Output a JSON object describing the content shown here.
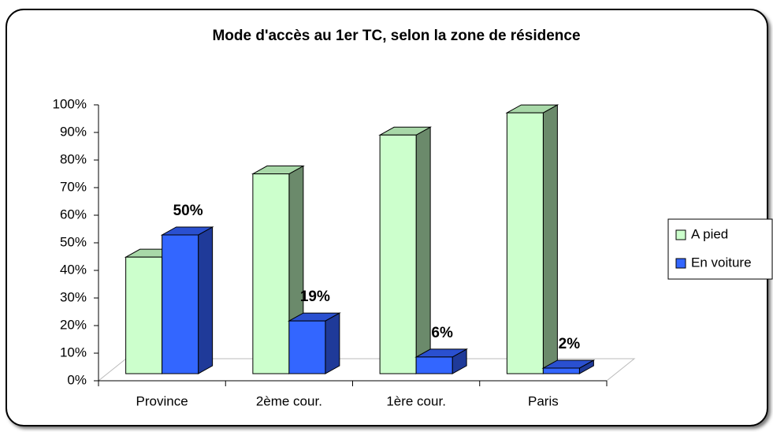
{
  "chart_data": {
    "type": "bar3d",
    "title": "Mode d'accès au 1er TC, selon la zone de résidence",
    "categories": [
      "Province",
      "2ème cour.",
      "1ère cour.",
      "Paris"
    ],
    "series": [
      {
        "name": "A pied",
        "color": "#ccffcc",
        "values": [
          42,
          72,
          86,
          94
        ]
      },
      {
        "name": "En voiture",
        "color": "#3366ff",
        "values": [
          50,
          19,
          6,
          2
        ],
        "value_labels": [
          "50%",
          "19%",
          "6%",
          "2%"
        ]
      }
    ],
    "ylim": [
      0,
      100
    ],
    "yticks": [
      {
        "value": 0,
        "label": "0%"
      },
      {
        "value": 10,
        "label": "10%"
      },
      {
        "value": 20,
        "label": "20%"
      },
      {
        "value": 30,
        "label": "30%"
      },
      {
        "value": 40,
        "label": "40%"
      },
      {
        "value": 50,
        "label": "50%"
      },
      {
        "value": 60,
        "label": "60%"
      },
      {
        "value": 70,
        "label": "70%"
      },
      {
        "value": 80,
        "label": "80%"
      },
      {
        "value": 90,
        "label": "90%"
      },
      {
        "value": 100,
        "label": "100%"
      }
    ],
    "legend": "right"
  }
}
